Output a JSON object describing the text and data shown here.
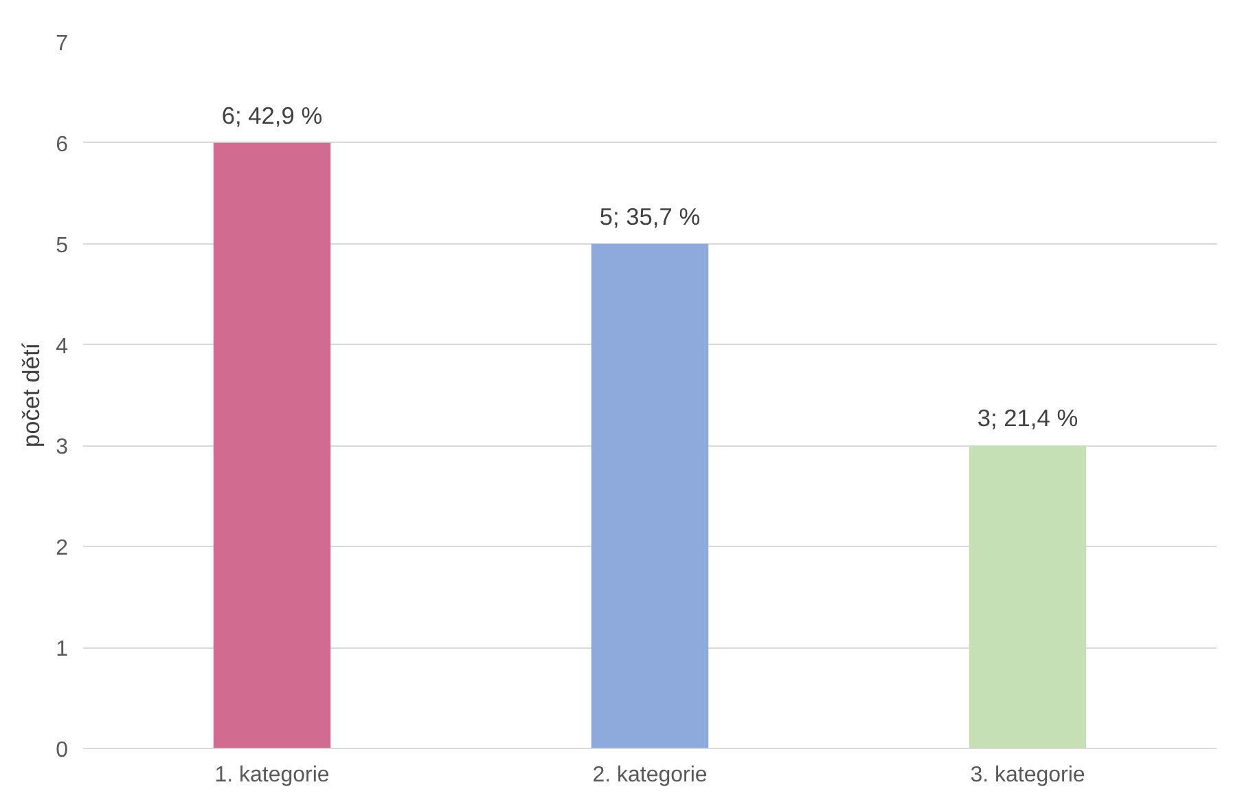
{
  "chart_data": {
    "type": "bar",
    "ylabel": "počet dětí",
    "categories": [
      "1. kategorie",
      "2. kategorie",
      "3. kategorie"
    ],
    "values": [
      6,
      5,
      3
    ],
    "colors": [
      "#d16b8f",
      "#8eaadc",
      "#c5e0b4"
    ],
    "value_labels": [
      "6; 42,9 %",
      "5; 35,7 %",
      "3; 21,4 %"
    ],
    "ylim": [
      0,
      7
    ],
    "yticks": [
      0,
      1,
      2,
      3,
      4,
      5,
      6,
      7
    ],
    "grid": "y"
  }
}
